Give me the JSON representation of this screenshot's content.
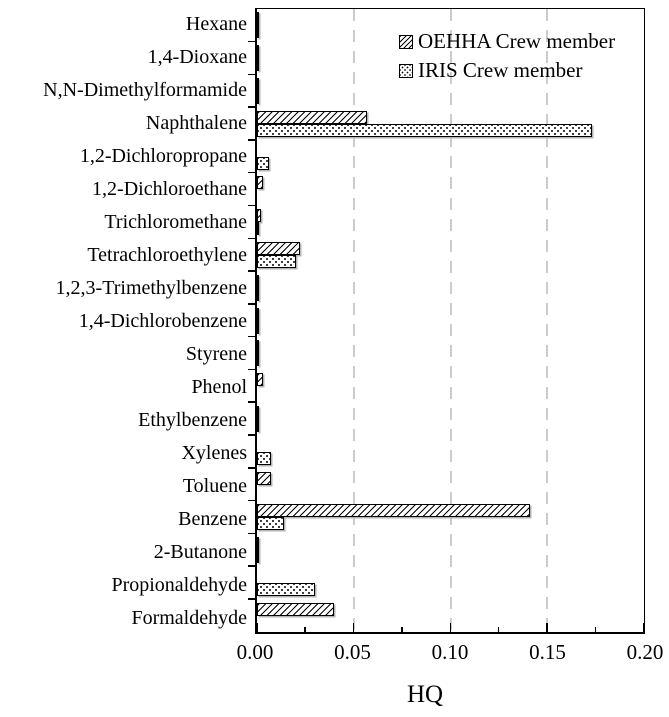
{
  "figure": {
    "background": "#ffffff",
    "text_color": "#000000",
    "gridline_color": "#cccccc",
    "bar_fill": "#ffffff",
    "bar_border": "#000000"
  },
  "chart_data": {
    "type": "bar",
    "orientation": "horizontal",
    "title": "",
    "xlabel": "HQ",
    "ylabel": "",
    "xlim": [
      0,
      0.2
    ],
    "x_tick_labels": [
      "0.00",
      "0.05",
      "0.10",
      "0.15",
      "0.20"
    ],
    "x_major_tick_values": [
      0,
      0.05,
      0.1,
      0.15,
      0.2
    ],
    "x_minor_tick_values": [
      0.025,
      0.075,
      0.125,
      0.175
    ],
    "gridlines": {
      "show": true,
      "values": [
        0.05,
        0.1,
        0.15
      ],
      "style": "dashed"
    },
    "grid": "vertical-dashed",
    "legend_position": "top-right-inside",
    "categories": [
      "Hexane",
      "1,4-Dioxane",
      "N,N-Dimethylformamide",
      "Naphthalene",
      "1,2-Dichloropropane",
      "1,2-Dichloroethane",
      "Trichloromethane",
      "Tetrachloroethylene",
      "1,2,3-Trimethylbenzene",
      "1,4-Dichlorobenzene",
      "Styrene",
      "Phenol",
      "Ethylbenzene",
      "Xylenes",
      "Toluene",
      "Benzene",
      "2-Butanone",
      "Propionaldehyde",
      "Formaldehyde"
    ],
    "series": [
      {
        "name": "OEHHA Crew member",
        "pattern": "hatch",
        "values": [
          0.001,
          0.001,
          0.001,
          0.057,
          0,
          0.003,
          0.002,
          0.022,
          0.001,
          0.001,
          0.001,
          0.003,
          0.001,
          0,
          0.007,
          0.141,
          0.001,
          0,
          0.04
        ]
      },
      {
        "name": "IRIS Crew member",
        "pattern": "dots",
        "values": [
          0.001,
          0.001,
          0.001,
          0.173,
          0.006,
          0,
          0.001,
          0.02,
          0.001,
          0.001,
          0.001,
          0,
          0.001,
          0.007,
          0,
          0.014,
          0.001,
          0.03,
          0
        ]
      }
    ]
  }
}
